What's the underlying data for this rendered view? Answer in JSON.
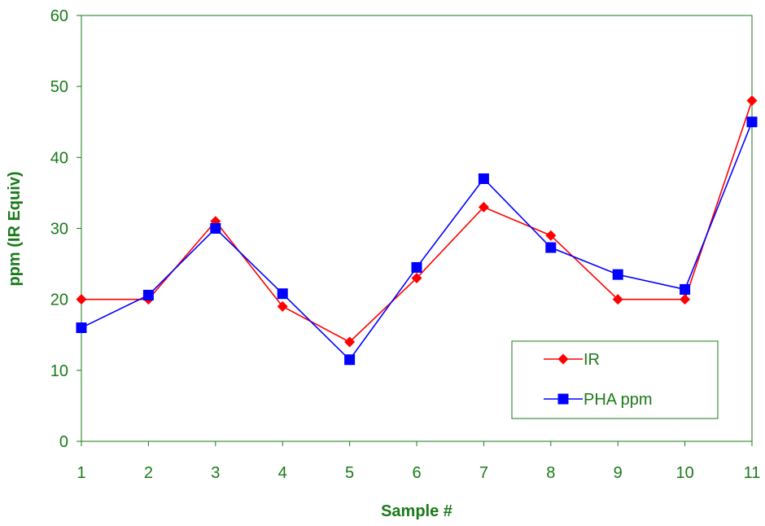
{
  "chart_data": {
    "type": "line",
    "title": "",
    "xlabel": "Sample #",
    "ylabel": "ppm (IR Equiv)",
    "x": [
      1,
      2,
      3,
      4,
      5,
      6,
      7,
      8,
      9,
      10,
      11
    ],
    "xlim": [
      1,
      11
    ],
    "ylim": [
      0,
      60
    ],
    "yticks": [
      0,
      10,
      20,
      30,
      40,
      50,
      60
    ],
    "grid": false,
    "legend_position": "bottom-right",
    "series": [
      {
        "name": "IR",
        "marker": "diamond",
        "color": "#ff0000",
        "values": [
          20,
          20,
          31,
          19,
          14,
          23,
          33,
          29,
          20,
          20,
          48
        ]
      },
      {
        "name": "PHA ppm",
        "marker": "square",
        "color": "#0000ff",
        "values": [
          16,
          20.6,
          30,
          20.8,
          11.5,
          24.5,
          37,
          27.3,
          23.5,
          21.4,
          45
        ]
      }
    ],
    "axis_color": "#1a7a1a"
  }
}
